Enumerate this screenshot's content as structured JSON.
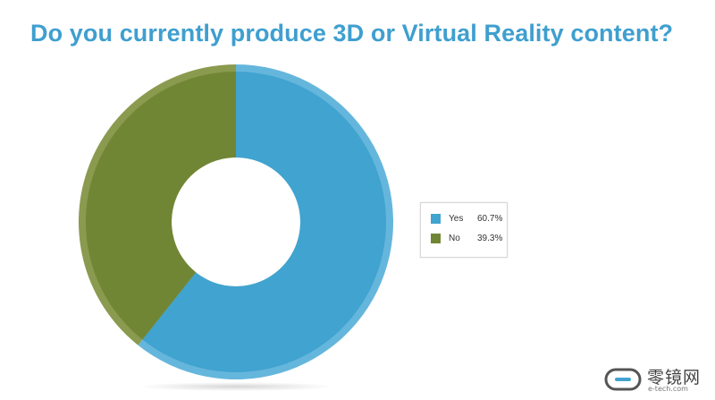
{
  "chart_data": {
    "type": "pie",
    "style": "donut",
    "title": "Do you currently produce 3D or Virtual Reality content?",
    "categories": [
      "Yes",
      "No"
    ],
    "values": [
      60.7,
      39.3
    ],
    "value_labels": [
      "60.7%",
      "39.3%"
    ],
    "colors": [
      "#41a3cf",
      "#718635"
    ],
    "rim_colors": [
      "#65b6dc",
      "#8a9a4f"
    ],
    "legend_position": "right"
  },
  "watermark": {
    "text": "零镜网",
    "subtext": "e-tech.com"
  }
}
